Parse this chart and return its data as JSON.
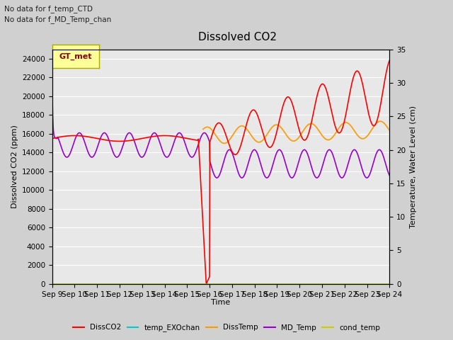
{
  "title": "Dissolved CO2",
  "xlabel": "Time",
  "ylabel_left": "Dissolved CO2 (ppm)",
  "ylabel_right": "Temperature, Water Level (cm)",
  "annotation1": "No data for f_temp_CTD",
  "annotation2": "No data for f_MD_Temp_chan",
  "gt_met_label": "GT_met",
  "ylim_left": [
    0,
    25000
  ],
  "ylim_right": [
    0,
    35
  ],
  "yticks_left": [
    0,
    2000,
    4000,
    6000,
    8000,
    10000,
    12000,
    14000,
    16000,
    18000,
    20000,
    22000,
    24000
  ],
  "yticks_right": [
    0,
    5,
    10,
    15,
    20,
    25,
    30,
    35
  ],
  "xtick_labels": [
    "Sep 9",
    "Sep 10",
    "Sep 11",
    "Sep 12",
    "Sep 13",
    "Sep 14",
    "Sep 15",
    "Sep 16",
    "Sep 17",
    "Sep 18",
    "Sep 19",
    "Sep 20",
    "Sep 21",
    "Sep 22",
    "Sep 23",
    "Sep 24"
  ],
  "bg_color": "#d0d0d0",
  "plot_bg_color": "#e8e8e8",
  "grid_color": "#ffffff",
  "series": {
    "DissCO2": {
      "color": "#ff0000",
      "lw": 1.2
    },
    "temp_EXOchan": {
      "color": "#00cccc",
      "lw": 1.2
    },
    "DissTemp": {
      "color": "#ff9900",
      "lw": 1.2
    },
    "MD_Temp": {
      "color": "#9900cc",
      "lw": 1.2
    },
    "cond_temp": {
      "color": "#cccc00",
      "lw": 1.2
    }
  }
}
